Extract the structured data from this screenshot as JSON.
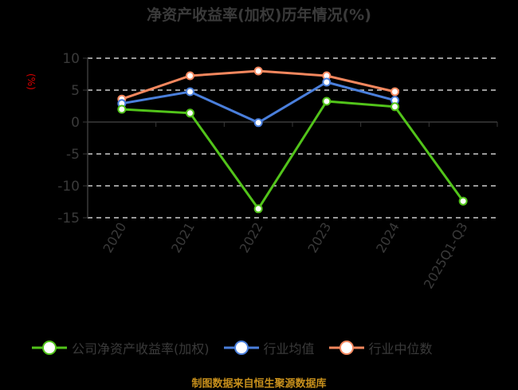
{
  "title": "净资产收益率(加权)历年情况(%)",
  "y_unit": "(%)",
  "source": "制图数据来自恒生聚源数据库",
  "colors": {
    "company": "#52c41a",
    "avg": "#4a7fdc",
    "median": "#f4875e",
    "axis": "#3a3a3a",
    "grid": "#cccccc",
    "unit": "#e00000",
    "source": "#c8901c"
  },
  "legend": [
    {
      "label": "公司净资产收益率(加权)",
      "color": "#52c41a"
    },
    {
      "label": "行业均值",
      "color": "#4a7fdc"
    },
    {
      "label": "行业中位数",
      "color": "#f4875e"
    }
  ],
  "chart_data": {
    "type": "line",
    "title": "净资产收益率(加权)历年情况(%)",
    "xlabel": "",
    "ylabel": "(%)",
    "categories": [
      "2020",
      "2021",
      "2022",
      "2023",
      "2024",
      "2025Q1-Q3"
    ],
    "ylim": [
      -15,
      10
    ],
    "yticks": [
      10,
      5,
      0,
      -5,
      -10,
      -15
    ],
    "grid": true,
    "legend_position": "bottom",
    "series": [
      {
        "name": "公司净资产收益率(加权)",
        "values": [
          2.0,
          1.4,
          -13.6,
          3.25,
          2.4,
          -12.4
        ]
      },
      {
        "name": "行业均值",
        "values": [
          2.9,
          4.75,
          -0.1,
          6.25,
          3.4,
          null
        ]
      },
      {
        "name": "行业中位数",
        "values": [
          3.6,
          7.25,
          8.0,
          7.25,
          4.75,
          null
        ]
      }
    ]
  }
}
